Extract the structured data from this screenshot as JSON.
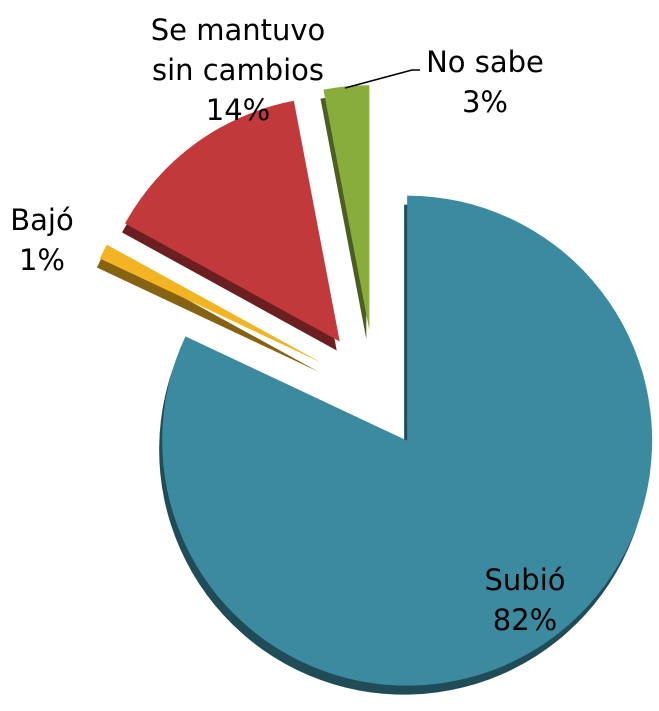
{
  "chart_data": {
    "type": "pie",
    "categories": [
      "Subió",
      "Bajó",
      "Se mantuvo sin cambios",
      "No sabe"
    ],
    "values": [
      82,
      1,
      14,
      3
    ],
    "value_labels": [
      "82%",
      "1%",
      "14%",
      "3%"
    ],
    "colors": [
      "#3b8a9f",
      "#f2b423",
      "#c2393b",
      "#88ad3d"
    ]
  }
}
